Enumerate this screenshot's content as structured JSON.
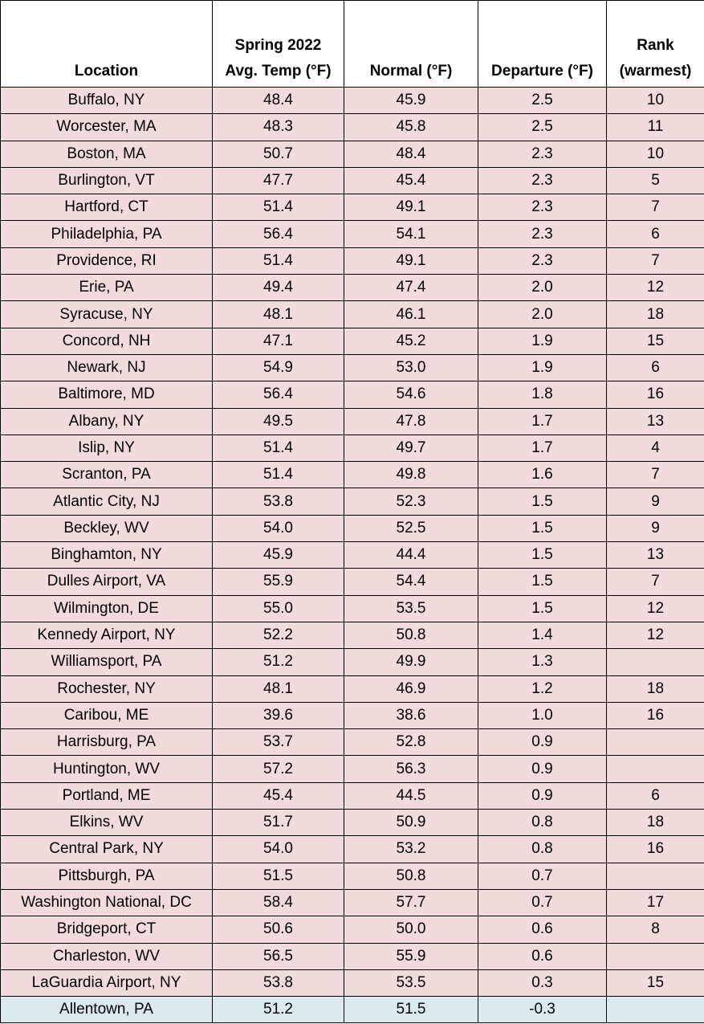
{
  "table": {
    "header": [
      [
        "Location"
      ],
      [
        "Spring 2022",
        "Avg. Temp (°F)"
      ],
      [
        "Normal (°F)"
      ],
      [
        "Departure (°F)"
      ],
      [
        "Rank",
        "(warmest)"
      ]
    ],
    "rows": [
      [
        "Buffalo, NY",
        "48.4",
        "45.9",
        "2.5",
        "10"
      ],
      [
        "Worcester, MA",
        "48.3",
        "45.8",
        "2.5",
        "11"
      ],
      [
        "Boston, MA",
        "50.7",
        "48.4",
        "2.3",
        "10"
      ],
      [
        "Burlington, VT",
        "47.7",
        "45.4",
        "2.3",
        "5"
      ],
      [
        "Hartford, CT",
        "51.4",
        "49.1",
        "2.3",
        "7"
      ],
      [
        "Philadelphia, PA",
        "56.4",
        "54.1",
        "2.3",
        "6"
      ],
      [
        "Providence, RI",
        "51.4",
        "49.1",
        "2.3",
        "7"
      ],
      [
        "Erie, PA",
        "49.4",
        "47.4",
        "2.0",
        "12"
      ],
      [
        "Syracuse, NY",
        "48.1",
        "46.1",
        "2.0",
        "18"
      ],
      [
        "Concord, NH",
        "47.1",
        "45.2",
        "1.9",
        "15"
      ],
      [
        "Newark, NJ",
        "54.9",
        "53.0",
        "1.9",
        "6"
      ],
      [
        "Baltimore, MD",
        "56.4",
        "54.6",
        "1.8",
        "16"
      ],
      [
        "Albany, NY",
        "49.5",
        "47.8",
        "1.7",
        "13"
      ],
      [
        "Islip, NY",
        "51.4",
        "49.7",
        "1.7",
        "4"
      ],
      [
        "Scranton, PA",
        "51.4",
        "49.8",
        "1.6",
        "7"
      ],
      [
        "Atlantic City, NJ",
        "53.8",
        "52.3",
        "1.5",
        "9"
      ],
      [
        "Beckley, WV",
        "54.0",
        "52.5",
        "1.5",
        "9"
      ],
      [
        "Binghamton, NY",
        "45.9",
        "44.4",
        "1.5",
        "13"
      ],
      [
        "Dulles Airport, VA",
        "55.9",
        "54.4",
        "1.5",
        "7"
      ],
      [
        "Wilmington, DE",
        "55.0",
        "53.5",
        "1.5",
        "12"
      ],
      [
        "Kennedy Airport, NY",
        "52.2",
        "50.8",
        "1.4",
        "12"
      ],
      [
        "Williamsport, PA",
        "51.2",
        "49.9",
        "1.3",
        null
      ],
      [
        "Rochester, NY",
        "48.1",
        "46.9",
        "1.2",
        "18"
      ],
      [
        "Caribou, ME",
        "39.6",
        "38.6",
        "1.0",
        "16"
      ],
      [
        "Harrisburg, PA",
        "53.7",
        "52.8",
        "0.9",
        null
      ],
      [
        "Huntington, WV",
        "57.2",
        "56.3",
        "0.9",
        null
      ],
      [
        "Portland, ME",
        "45.4",
        "44.5",
        "0.9",
        "6"
      ],
      [
        "Elkins, WV",
        "51.7",
        "50.9",
        "0.8",
        "18"
      ],
      [
        "Central Park, NY",
        "54.0",
        "53.2",
        "0.8",
        "16"
      ],
      [
        "Pittsburgh, PA",
        "51.5",
        "50.8",
        "0.7",
        null
      ],
      [
        "Washington National, DC",
        "58.4",
        "57.7",
        "0.7",
        "17"
      ],
      [
        "Bridgeport, CT",
        "50.6",
        "50.0",
        "0.6",
        "8"
      ],
      [
        "Charleston, WV",
        "56.5",
        "55.9",
        "0.6",
        null
      ],
      [
        "LaGuardia Airport, NY",
        "53.8",
        "53.5",
        "0.3",
        "15"
      ],
      [
        "Allentown, PA",
        "51.2",
        "51.5",
        "-0.3",
        null
      ]
    ]
  }
}
